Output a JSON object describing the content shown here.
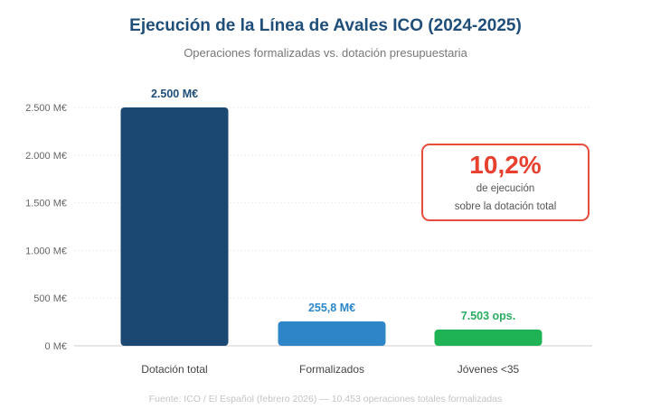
{
  "chart_data": {
    "type": "bar",
    "title": "Ejecución de la Línea de Avales ICO (2024-2025)",
    "subtitle": "Operaciones formalizadas vs. dotación presupuestaria",
    "categories": [
      "Dotación total",
      "Formalizados",
      "Jóvenes <35"
    ],
    "values": [
      2500,
      255.8,
      170
    ],
    "data_labels": [
      "2.500 M€",
      "255,8 M€",
      "7.503 ops."
    ],
    "colors": [
      "#1b4872",
      "#2e86c8",
      "#1fb356"
    ],
    "label_colors": [
      "#1f4e79",
      "#2e86c8",
      "#27ae60"
    ],
    "ylim": [
      0,
      2500
    ],
    "yticks": [
      0,
      500,
      1000,
      1500,
      2000,
      2500
    ],
    "ytick_labels": [
      "0 M€",
      "500 M€",
      "1.000 M€",
      "1.500 M€",
      "2.000 M€",
      "2.500 M€"
    ],
    "grid": true,
    "legend": "none"
  },
  "callout": {
    "value": "10,2%",
    "line1": "de ejecución",
    "line2": "sobre la dotación total"
  },
  "footer": "Fuente: ICO / El Español (febrero 2026) — 10.453 operaciones totales formalizadas"
}
